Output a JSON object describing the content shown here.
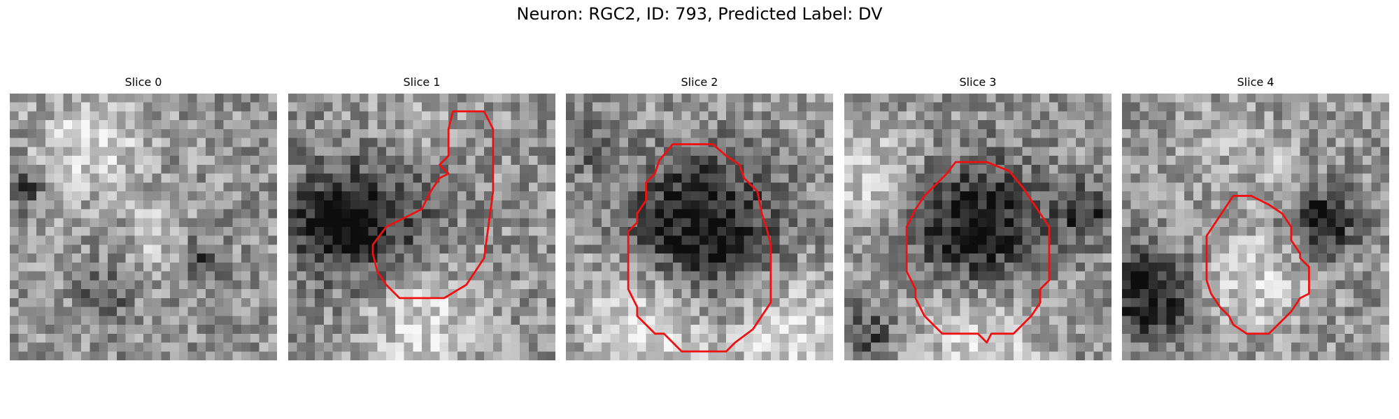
{
  "figure": {
    "title": "Neuron: RGC2, ID: 793, Predicted Label: DV"
  },
  "panels": [
    {
      "title": "Slice 0",
      "seed": 11,
      "blobs": [
        [
          0.3,
          0.2,
          0.2,
          0.28
        ],
        [
          0.55,
          0.52,
          0.1,
          0.22
        ],
        [
          0.05,
          0.35,
          0.08,
          -0.35
        ],
        [
          0.72,
          0.62,
          0.08,
          -0.3
        ],
        [
          0.35,
          0.75,
          0.1,
          -0.25
        ]
      ]
    },
    {
      "title": "Slice 1",
      "seed": 23,
      "blobs": [
        [
          0.3,
          0.45,
          0.28,
          -0.45
        ],
        [
          0.4,
          0.2,
          0.25,
          0.15
        ],
        [
          0.5,
          0.85,
          0.22,
          0.3
        ],
        [
          0.15,
          0.5,
          0.12,
          -0.3
        ]
      ]
    },
    {
      "title": "Slice 2",
      "seed": 37,
      "blobs": [
        [
          0.5,
          0.5,
          0.28,
          -0.55
        ],
        [
          0.3,
          0.85,
          0.25,
          0.35
        ],
        [
          0.85,
          0.9,
          0.22,
          0.3
        ],
        [
          0.5,
          0.05,
          0.25,
          0.05
        ],
        [
          0.05,
          0.2,
          0.1,
          -0.2
        ]
      ]
    },
    {
      "title": "Slice 3",
      "seed": 53,
      "blobs": [
        [
          0.5,
          0.5,
          0.24,
          -0.55
        ],
        [
          0.9,
          0.45,
          0.1,
          -0.4
        ],
        [
          0.1,
          0.3,
          0.18,
          0.25
        ],
        [
          0.5,
          0.9,
          0.25,
          0.25
        ],
        [
          0.1,
          0.9,
          0.1,
          -0.3
        ]
      ]
    },
    {
      "title": "Slice 4",
      "seed": 71,
      "blobs": [
        [
          0.75,
          0.48,
          0.12,
          -0.55
        ],
        [
          0.1,
          0.75,
          0.16,
          -0.55
        ],
        [
          0.5,
          0.7,
          0.2,
          0.25
        ],
        [
          0.35,
          0.2,
          0.2,
          0.1
        ],
        [
          0.6,
          0.3,
          0.1,
          0.15
        ]
      ]
    }
  ],
  "colors": {
    "contour": "#ee1111"
  }
}
